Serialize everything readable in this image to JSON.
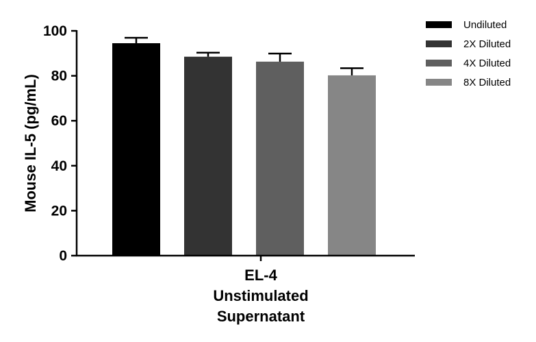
{
  "chart_data": {
    "type": "bar",
    "ylabel": "Mouse IL-5 (pg/mL)",
    "category_label": [
      "EL-4",
      "Unstimulated",
      "Supernatant"
    ],
    "ylim": [
      0,
      100
    ],
    "yticks": [
      0,
      20,
      40,
      60,
      80,
      100
    ],
    "grid": false,
    "legend_position": "top-right",
    "series": [
      {
        "name": "Undiluted",
        "value": 94.5,
        "error": 2.4,
        "color": "#000000"
      },
      {
        "name": "2X Diluted",
        "value": 88.5,
        "error": 1.8,
        "color": "#333333"
      },
      {
        "name": "4X Diluted",
        "value": 86.3,
        "error": 3.6,
        "color": "#5f5f5f"
      },
      {
        "name": "8X Diluted",
        "value": 80.2,
        "error": 3.2,
        "color": "#868686"
      }
    ]
  }
}
